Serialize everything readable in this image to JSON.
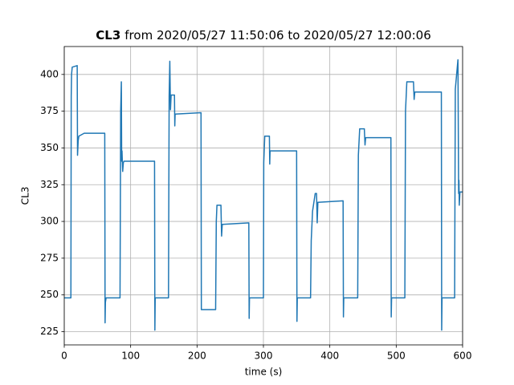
{
  "chart_data": {
    "type": "line",
    "title_bold": "CL3",
    "title": "from 2020/05/27 11:50:06 to 2020/05/27 12:00:06",
    "xlabel": "time (s)",
    "ylabel": "CL3",
    "color": "#1f77b4",
    "grid": true,
    "xlim": [
      0,
      600
    ],
    "xticks": [
      0,
      100,
      200,
      300,
      400,
      500,
      600
    ],
    "ylim": [
      216,
      419
    ],
    "yticks": [
      225,
      250,
      275,
      300,
      325,
      350,
      375,
      400
    ],
    "x": [
      0,
      10,
      10.5,
      11,
      12,
      19.5,
      20,
      21,
      22,
      30,
      61,
      61.5,
      62,
      63,
      84,
      85,
      86,
      86.5,
      87,
      88,
      89,
      90,
      92,
      136,
      136.5,
      137,
      157,
      158,
      159,
      160,
      161,
      166,
      166.5,
      167,
      206,
      206.5,
      228,
      229,
      230,
      236,
      237,
      238,
      278,
      278.5,
      279,
      300,
      300.5,
      302,
      309,
      309.5,
      310,
      350,
      350.5,
      351,
      371,
      372,
      374,
      378,
      380,
      381,
      382,
      420,
      420.5,
      421,
      442,
      443,
      445,
      452,
      453,
      454,
      492,
      492.5,
      493,
      513,
      514,
      516,
      526,
      527,
      528,
      568,
      568.5,
      569,
      588,
      589,
      593,
      594,
      594.5,
      595,
      596,
      600
    ],
    "values": [
      248,
      248,
      385,
      400,
      405,
      406,
      345,
      355,
      358,
      360,
      360,
      231,
      245,
      248,
      248,
      375,
      395,
      341,
      348,
      334,
      340,
      341,
      341,
      341,
      226,
      248,
      248,
      385,
      409,
      376,
      386,
      386,
      365,
      373,
      374,
      240,
      240,
      300,
      311,
      311,
      290,
      298,
      299,
      234,
      248,
      248,
      340,
      358,
      358,
      339,
      348,
      348,
      232,
      248,
      248,
      287,
      307,
      319,
      319,
      299,
      313,
      314,
      235,
      248,
      248,
      345,
      363,
      363,
      352,
      357,
      357,
      235,
      248,
      248,
      375,
      395,
      395,
      383,
      388,
      388,
      226,
      248,
      248,
      390,
      410,
      319,
      328,
      311,
      320,
      320
    ]
  }
}
